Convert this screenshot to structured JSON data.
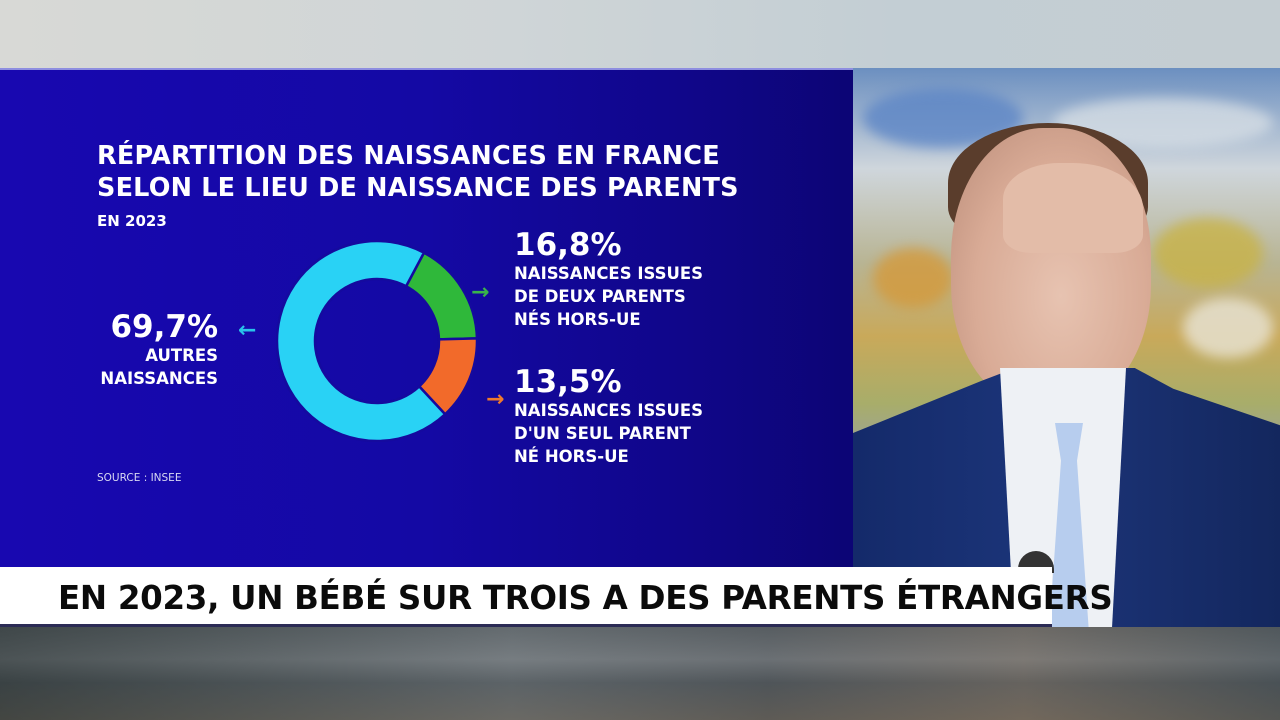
{
  "chart_panel": {
    "title_line1": "RÉPARTITION DES NAISSANCES EN FRANCE",
    "title_line2": "SELON LE LIEU DE NAISSANCE DES PARENTS",
    "subtitle": "EN 2023",
    "source": "SOURCE : INSEE",
    "segments": [
      {
        "value_label": "69,7%",
        "line1": "AUTRES",
        "line2": "NAISSANCES",
        "color": "#29d2f5",
        "arrow": "←"
      },
      {
        "value_label": "16,8%",
        "line1": "NAISSANCES ISSUES",
        "line2": "DE DEUX PARENTS",
        "line3": "NÉS HORS-UE",
        "color": "#2fb83a",
        "arrow": "→"
      },
      {
        "value_label": "13,5%",
        "line1": "NAISSANCES ISSUES",
        "line2": "D'UN SEUL PARENT",
        "line3": "NÉ HORS-UE",
        "color": "#f26a2a",
        "arrow": "→"
      }
    ],
    "background_color": "#1409a4"
  },
  "banner": {
    "headline": "EN 2023, UN BÉBÉ SUR TROIS A DES PARENTS ÉTRANGERS"
  },
  "chart_data": {
    "type": "pie",
    "variant": "donut",
    "title": "RÉPARTITION DES NAISSANCES EN FRANCE SELON LE LIEU DE NAISSANCE DES PARENTS",
    "subtitle": "EN 2023",
    "categories": [
      "Autres naissances",
      "Naissances issues de deux parents nés hors-UE",
      "Naissances issues d'un seul parent né hors-UE"
    ],
    "values": [
      69.7,
      16.8,
      13.5
    ],
    "unit": "%",
    "colors": [
      "#29d2f5",
      "#2fb83a",
      "#f26a2a"
    ],
    "source": "SOURCE : INSEE",
    "legend_position": "labels beside slices with arrows"
  }
}
